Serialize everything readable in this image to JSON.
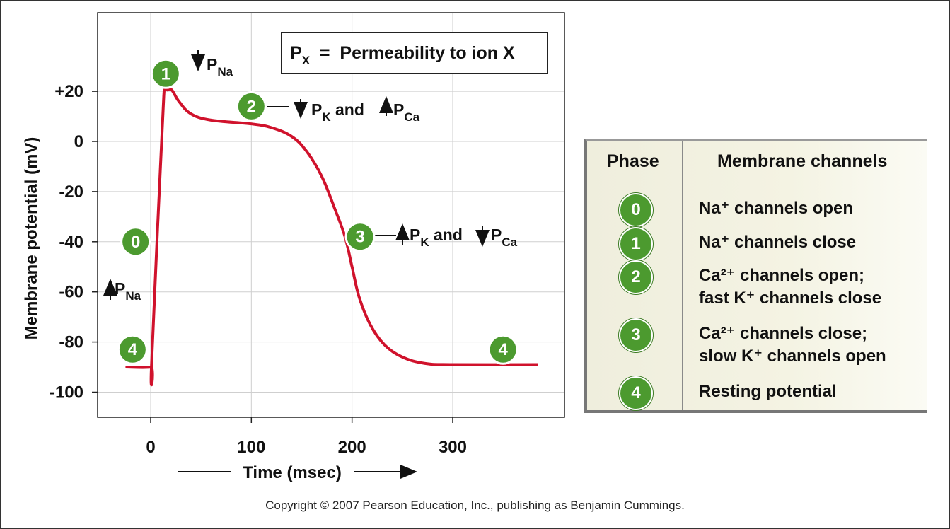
{
  "chart_data": {
    "type": "line",
    "xlabel": "Time (msec)",
    "ylabel": "Membrane potential (mV)",
    "xlim": [
      -45,
      410
    ],
    "ylim": [
      -105,
      50
    ],
    "x_ticks": [
      0,
      100,
      200,
      300
    ],
    "x_tick_labels": [
      "0",
      "100",
      "200",
      "300"
    ],
    "y_ticks": [
      20,
      0,
      -20,
      -40,
      -60,
      -80,
      -100
    ],
    "y_tick_labels": [
      "+20",
      "0",
      "-20",
      "-40",
      "-60",
      "-80",
      "-100"
    ],
    "grid": true,
    "line_color": "#d0122c",
    "series": [
      {
        "points": [
          [
            -25,
            -90
          ],
          [
            0,
            -90
          ],
          [
            1,
            -88
          ],
          [
            13,
            18
          ],
          [
            17,
            20.5
          ],
          [
            21,
            20.5
          ],
          [
            28,
            16
          ],
          [
            40,
            11
          ],
          [
            60,
            8.5
          ],
          [
            100,
            7
          ],
          [
            120,
            5.5
          ],
          [
            140,
            2
          ],
          [
            155,
            -4
          ],
          [
            170,
            -14
          ],
          [
            183,
            -27
          ],
          [
            193,
            -38
          ],
          [
            200,
            -50
          ],
          [
            207,
            -62
          ],
          [
            218,
            -73
          ],
          [
            232,
            -81
          ],
          [
            250,
            -86
          ],
          [
            272,
            -88.5
          ],
          [
            300,
            -89
          ],
          [
            385,
            -89
          ]
        ]
      }
    ],
    "phase_markers": [
      {
        "label": "0",
        "x": -15,
        "y": -40
      },
      {
        "label": "1",
        "x": 15,
        "y": 27
      },
      {
        "label": "2",
        "x": 100,
        "y": 14
      },
      {
        "label": "3",
        "x": 208,
        "y": -38
      },
      {
        "label": "4",
        "x": -18,
        "y": -83
      },
      {
        "label": "4",
        "x": 350,
        "y": -83
      }
    ],
    "legend_box": "P_X = Permeability to ion X",
    "annotations": {
      "pna_up": {
        "main": "P",
        "sub": "Na"
      },
      "pna_down": {
        "main": "P",
        "sub": "Na"
      },
      "phase2": {
        "p1": "P",
        "s1": "K",
        "mid": " and ",
        "p2": "P",
        "s2": "Ca"
      },
      "phase3": {
        "p1": "P",
        "s1": "K",
        "mid": " and ",
        "p2": "P",
        "s2": "Ca"
      }
    },
    "legend": {
      "main": "P",
      "sub": "X",
      "rest": "  =  Permeability to ion X"
    }
  },
  "table": {
    "col1": "Phase",
    "col2": "Membrane channels",
    "rows": [
      {
        "phase": "0",
        "line1": "Na⁺ channels open",
        "line2": ""
      },
      {
        "phase": "1",
        "line1": "Na⁺ channels close",
        "line2": ""
      },
      {
        "phase": "2",
        "line1": "Ca²⁺ channels open;",
        "line2": "fast K⁺ channels close"
      },
      {
        "phase": "3",
        "line1": "Ca²⁺ channels close;",
        "line2": "slow K⁺ channels open"
      },
      {
        "phase": "4",
        "line1": "Resting potential",
        "line2": ""
      }
    ]
  },
  "colors": {
    "badge_green": "#4c9a2f",
    "curve_red": "#d0122c"
  },
  "copyright": "Copyright © 2007 Pearson Education, Inc., publishing as Benjamin Cummings."
}
